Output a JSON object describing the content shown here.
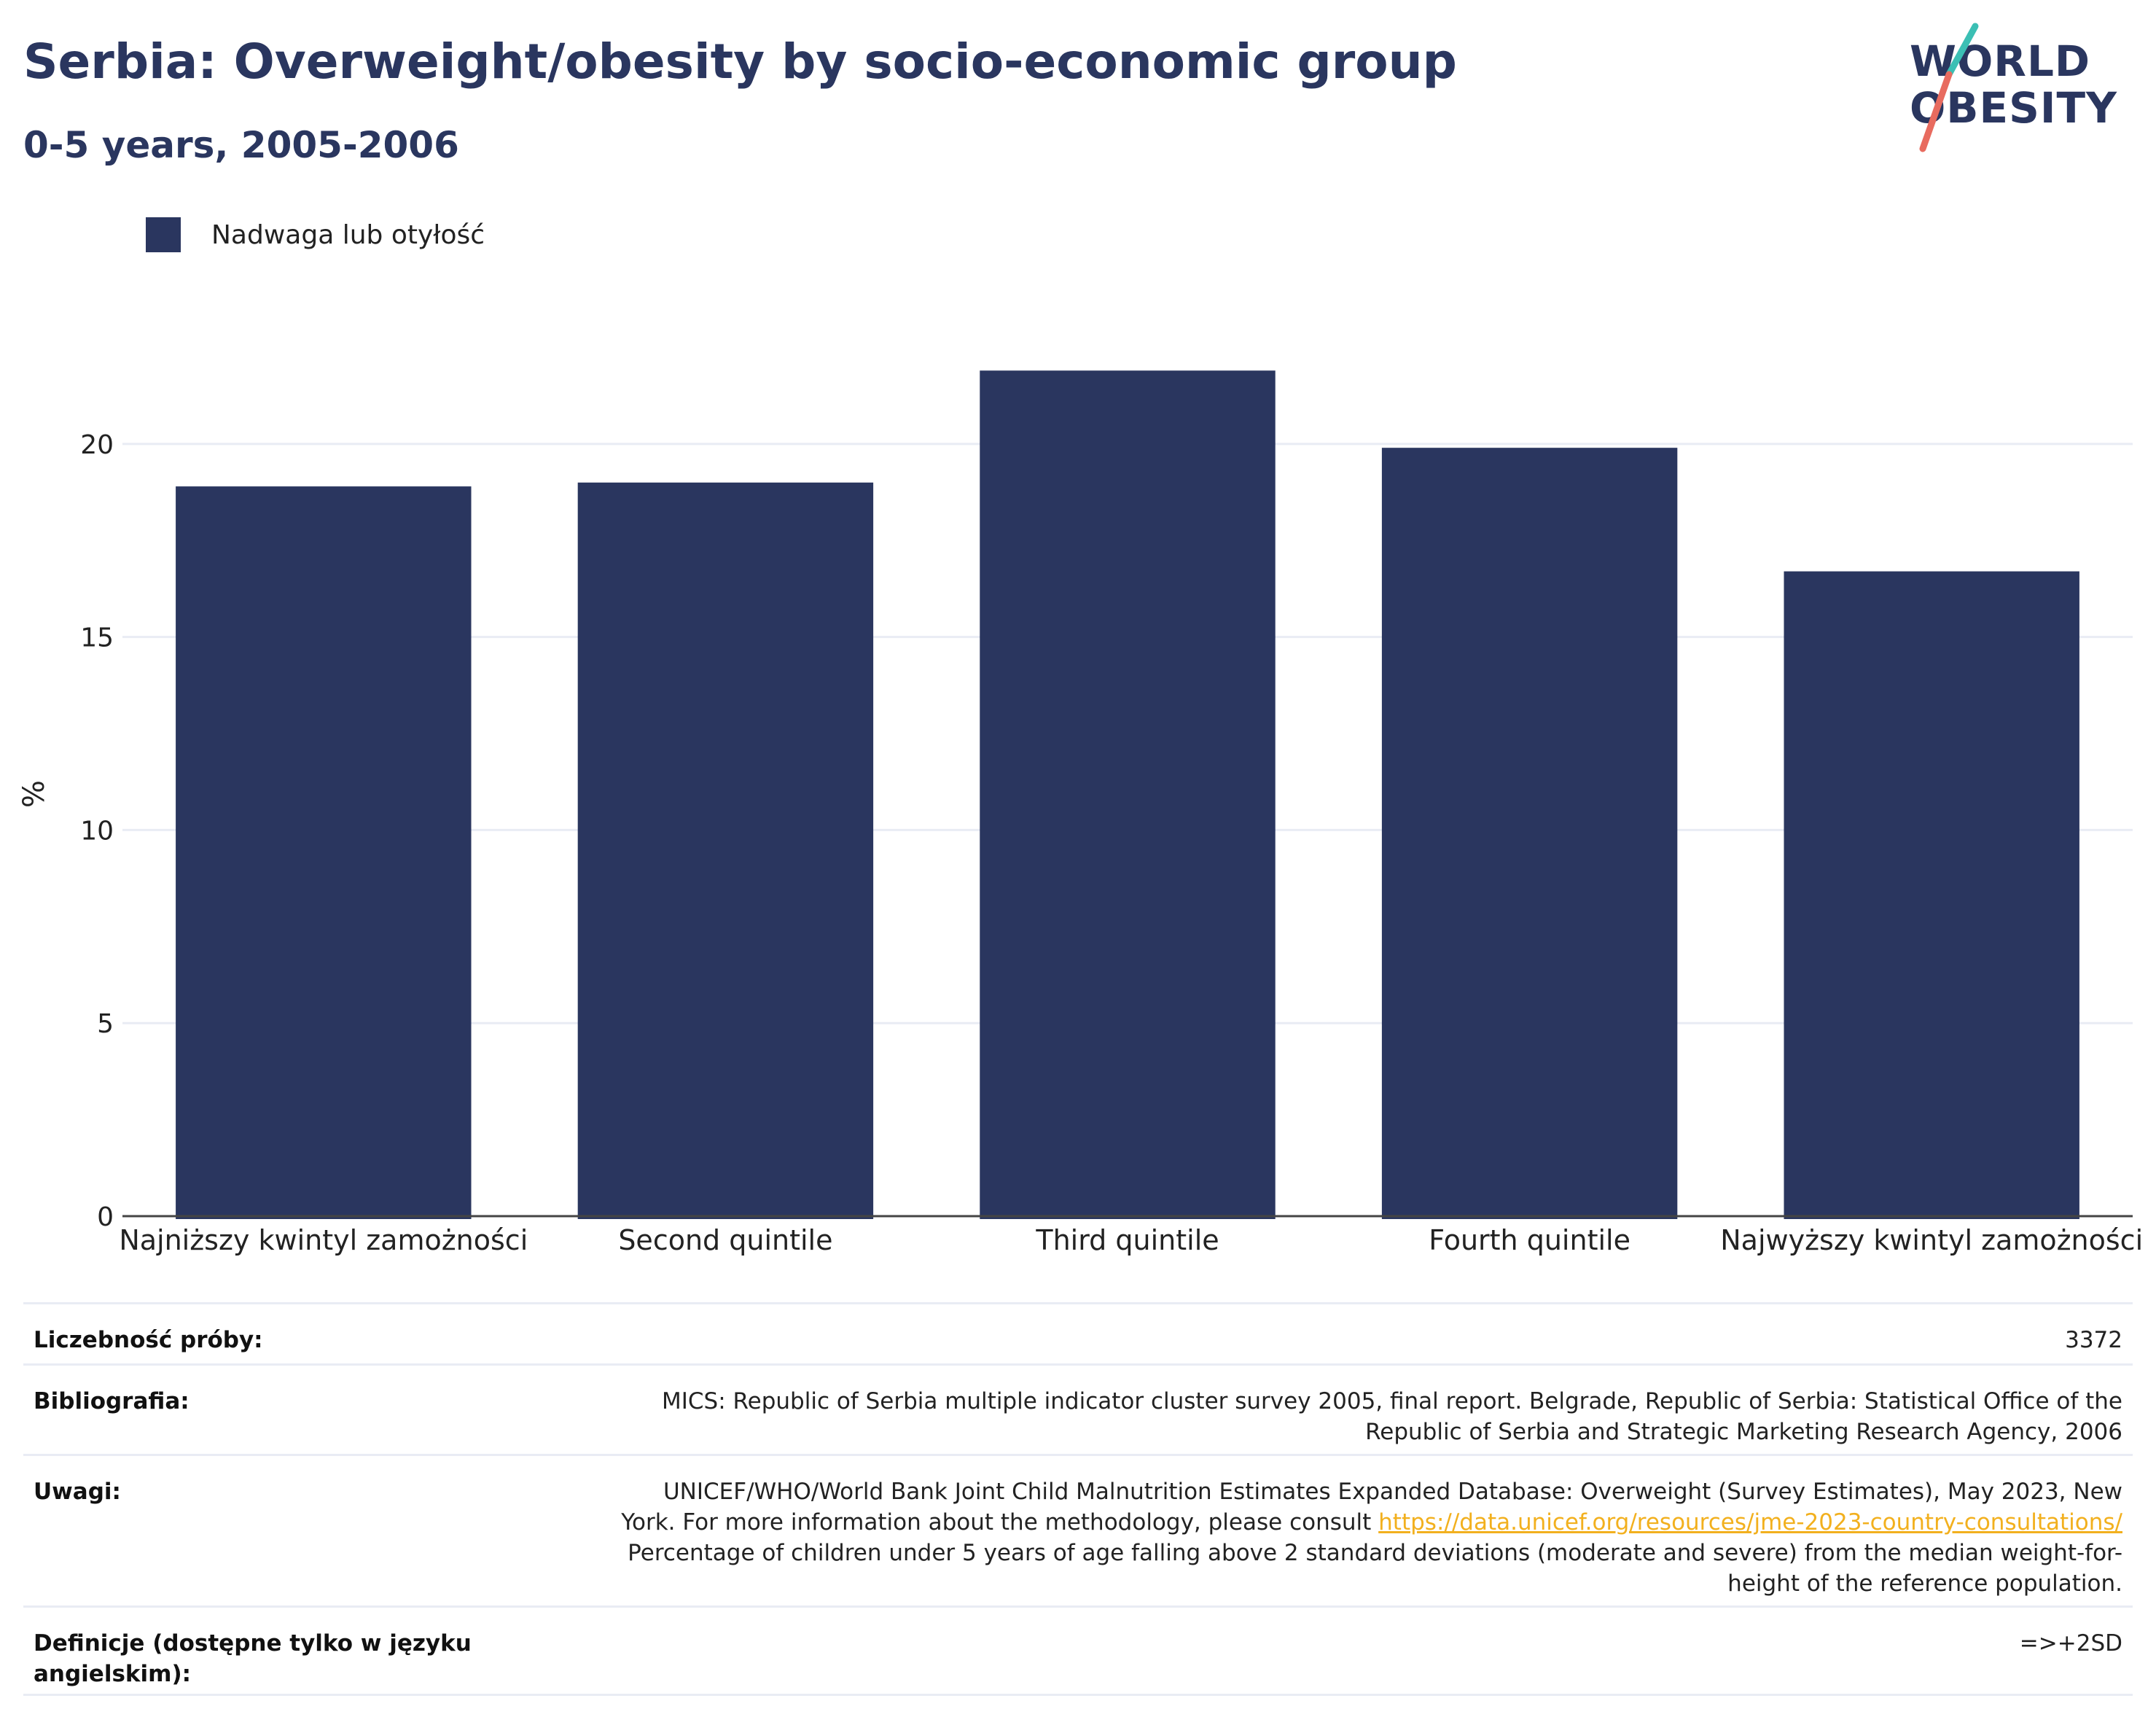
{
  "header": {
    "title": "Serbia: Overweight/obesity by socio-economic group",
    "subtitle": "0-5 years, 2005-2006"
  },
  "logo": {
    "line1": "WORLD",
    "line2": "OBESITY"
  },
  "colors": {
    "bar": "#2a365f",
    "title": "#2a365f",
    "link": "#f2b01e",
    "logo_teal": "#3bbfb4",
    "logo_coral": "#e86b5f"
  },
  "chart_data": {
    "type": "bar",
    "title": "Serbia: Overweight/obesity by socio-economic group",
    "subtitle": "0-5 years, 2005-2006",
    "categories": [
      "Najniższy kwintyl zamożności",
      "Second quintile",
      "Third quintile",
      "Fourth quintile",
      "Najwyższy kwintyl zamożności"
    ],
    "series": [
      {
        "name": "Nadwaga lub otyłość",
        "values": [
          18.9,
          19.0,
          21.9,
          19.9,
          16.7
        ]
      }
    ],
    "ylabel": "%",
    "xlabel": "",
    "ylim": [
      0,
      23
    ],
    "yticks": [
      0,
      5,
      10,
      15,
      20
    ],
    "grid": true,
    "legend_position": "top-left"
  },
  "meta": {
    "sample_label": "Liczebność próby:",
    "sample_value": "3372",
    "bib_label": "Bibliografia:",
    "bib_value": "MICS: Republic of Serbia multiple indicator cluster survey 2005, final report. Belgrade, Republic of Serbia: Statistical Office of the Republic of Serbia and Strategic Marketing Research Agency, 2006",
    "notes_label": "Uwagi:",
    "notes_value_1": "UNICEF/WHO/World Bank Joint Child Malnutrition Estimates Expanded Database: Overweight (Survey Estimates), May 2023, New York. For more information about the methodology, please consult",
    "notes_link": "https://data.unicef.org/resources/jme-2023-country-consultations/",
    "notes_value_2": "Percentage of children under 5 years of age falling above 2 standard deviations (moderate and severe) from the median weight-for-height of the reference population.",
    "def_label": "Definicje (dostępne tylko w języku angielskim):",
    "def_value": "=>+2SD"
  }
}
